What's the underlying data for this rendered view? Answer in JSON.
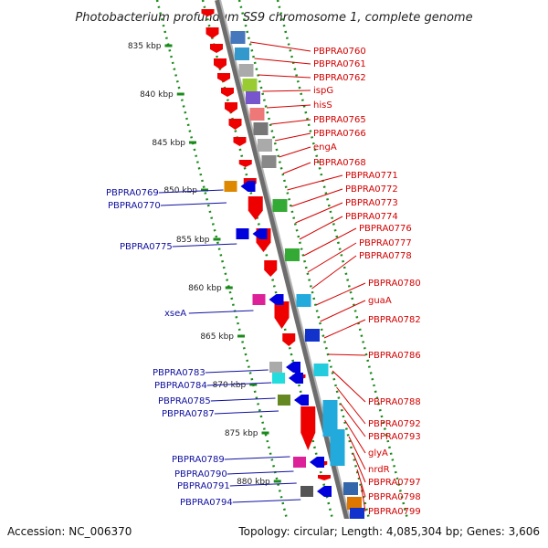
{
  "title": "Photobacterium profundum SS9 chromosome 1, complete genome",
  "accession": "Accession: NC_006370",
  "topology": "Topology: circular; Length: 4,085,304 bp; Genes: 3,606",
  "scale_labels": [
    "835 kbp",
    "840 kbp",
    "845 kbp",
    "850 kbp",
    "855 kbp",
    "860 kbp",
    "865 kbp",
    "870 kbp",
    "875 kbp",
    "880 kbp"
  ],
  "forward_genes": [
    "PBPRA0760",
    "PBPRA0761",
    "PBPRA0762",
    "ispG",
    "hisS",
    "PBPRA0765",
    "PBPRA0766",
    "engA",
    "PBPRA0768",
    "PBPRA0771",
    "PBPRA0772",
    "PBPRA0773",
    "PBPRA0774",
    "PBPRA0776",
    "PBPRA0777",
    "PBPRA0778",
    "PBPRA0780",
    "guaA",
    "PBPRA0782",
    "PBPRA0786",
    "PBPRA0788",
    "PBPRA0792",
    "PBPRA0793",
    "glyA",
    "nrdR",
    "PBPRA0797",
    "PBPRA0798",
    "PBPRA0799"
  ],
  "reverse_genes": [
    "PBPRA0769",
    "PBPRA0770",
    "PBPRA0775",
    "xseA",
    "PBPRA0783",
    "PBPRA0784",
    "PBPRA0785",
    "PBPRA0787",
    "PBPRA0789",
    "PBPRA0790",
    "PBPRA0791",
    "PBPRA0794"
  ],
  "colors": {
    "forward_label": "#d40000",
    "reverse_label": "#1010a0",
    "forward_arrow": "#ee0000",
    "reverse_arrow": "#0000dd",
    "backbone": "#8a8a8a",
    "tick_dots": "#1a8a1a"
  }
}
